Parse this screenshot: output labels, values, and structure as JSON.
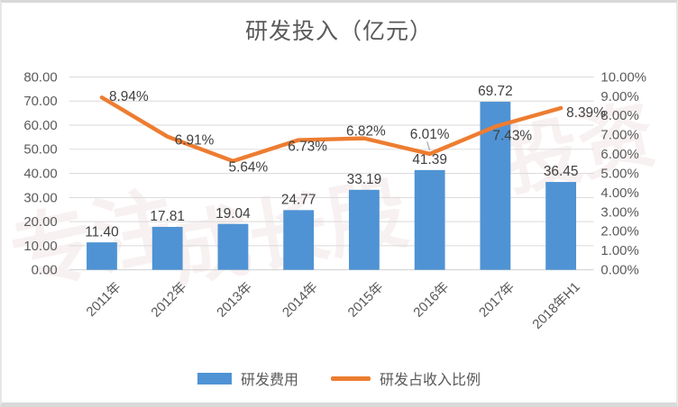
{
  "chart_data": {
    "type": "bar",
    "subtype": "bar-and-line-combo",
    "title": "研发投入（亿元）",
    "categories": [
      "2011年",
      "2012年",
      "2013年",
      "2014年",
      "2015年",
      "2016年",
      "2017年",
      "2018年H1"
    ],
    "series": [
      {
        "name": "研发费用",
        "type": "bar",
        "axis": "left",
        "values": [
          11.4,
          17.81,
          19.04,
          24.77,
          33.19,
          41.39,
          69.72,
          36.45
        ],
        "labels": [
          "11.40",
          "17.81",
          "19.04",
          "24.77",
          "33.19",
          "41.39",
          "69.72",
          "36.45"
        ],
        "color": "#4f93d4"
      },
      {
        "name": "研发占收入比例",
        "type": "line",
        "axis": "right",
        "values": [
          8.94,
          6.91,
          5.64,
          6.73,
          6.82,
          6.01,
          7.43,
          8.39
        ],
        "labels": [
          "8.94%",
          "6.91%",
          "5.64%",
          "6.73%",
          "6.82%",
          "6.01%",
          "7.43%",
          "8.39%"
        ],
        "color": "#ed7d31"
      }
    ],
    "left_axis": {
      "min": 0,
      "max": 80,
      "step": 10,
      "tick_labels": [
        "0.00",
        "10.00",
        "20.00",
        "30.00",
        "40.00",
        "50.00",
        "60.00",
        "70.00",
        "80.00"
      ]
    },
    "right_axis": {
      "min": 0,
      "max": 10,
      "step": 1,
      "tick_labels": [
        "0.00%",
        "1.00%",
        "2.00%",
        "3.00%",
        "4.00%",
        "5.00%",
        "6.00%",
        "7.00%",
        "8.00%",
        "9.00%",
        "10.00%"
      ]
    },
    "grid": true,
    "legend_position": "bottom",
    "annotation_leader_line_on": "6.01%"
  },
  "legend": {
    "bar_label": "研发费用",
    "line_label": "研发占收入比例"
  },
  "watermark": {
    "fragments": [
      "专注",
      "成长股",
      "投资"
    ]
  },
  "colors": {
    "bar": "#4f93d4",
    "line": "#ed7d31",
    "grid": "#d9d9d9",
    "axis_text": "#595959",
    "data_label_text": "#404040",
    "leader_line": "#a6a6a6",
    "title_text": "#595959"
  }
}
